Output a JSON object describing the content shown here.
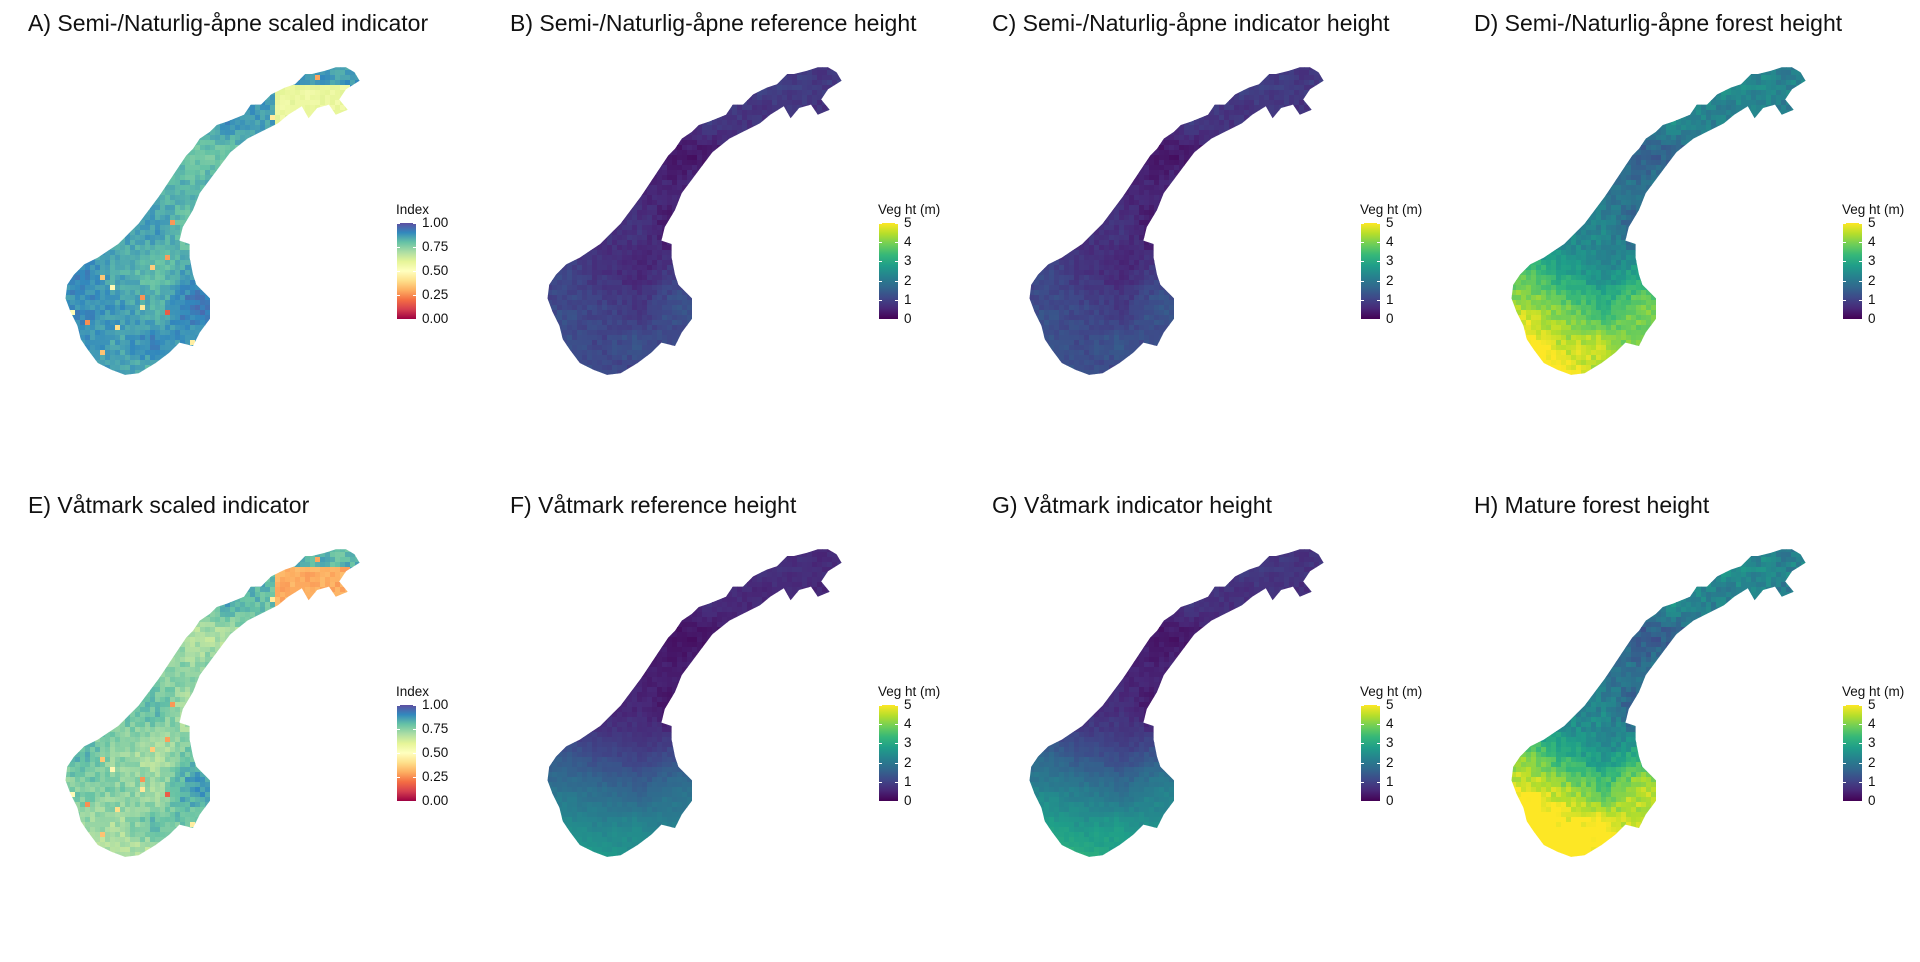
{
  "panels": [
    {
      "id": "A",
      "title": "A) Semi-/Naturlig-åpne scaled indicator",
      "legend": "index",
      "palette": "spectral",
      "fill": 0.85,
      "spread": 0.07,
      "south": 0.0,
      "west": 0.0,
      "north": -0.05,
      "lowSpots": true,
      "finnmark": 0.58
    },
    {
      "id": "B",
      "title": "B) Semi-/Naturlig-åpne reference height",
      "legend": "veg",
      "palette": "viridis",
      "fill": 0.13,
      "spread": 0.07,
      "south": 0.09,
      "west": 0.02,
      "north": -0.02,
      "lowSpots": false,
      "finnmark": null
    },
    {
      "id": "C",
      "title": "C) Semi-/Naturlig-åpne indicator height",
      "legend": "veg",
      "palette": "viridis",
      "fill": 0.13,
      "spread": 0.07,
      "south": 0.11,
      "west": 0.02,
      "north": -0.02,
      "lowSpots": false,
      "finnmark": null
    },
    {
      "id": "D",
      "title": "D) Semi-/Naturlig-åpne forest height",
      "legend": "veg",
      "palette": "viridis",
      "fill": 0.42,
      "spread": 0.12,
      "south": 0.45,
      "west": 0.35,
      "north": -0.1,
      "lowSpots": false,
      "finnmark": null
    },
    {
      "id": "E",
      "title": "E) Våtmark scaled indicator",
      "legend": "index",
      "palette": "spectral",
      "fill": 0.78,
      "spread": 0.1,
      "south": -0.05,
      "west": -0.12,
      "north": -0.05,
      "lowSpots": true,
      "finnmark": 0.3
    },
    {
      "id": "F",
      "title": "F) Våtmark reference height",
      "legend": "veg",
      "palette": "viridis",
      "fill": 0.1,
      "spread": 0.05,
      "south": 0.42,
      "west": 0.08,
      "north": -0.02,
      "lowSpots": false,
      "finnmark": null
    },
    {
      "id": "G",
      "title": "G) Våtmark indicator height",
      "legend": "veg",
      "palette": "viridis",
      "fill": 0.12,
      "spread": 0.06,
      "south": 0.48,
      "west": 0.1,
      "north": -0.02,
      "lowSpots": false,
      "finnmark": null
    },
    {
      "id": "H",
      "title": "H) Mature forest height",
      "legend": "veg",
      "palette": "viridis",
      "fill": 0.42,
      "spread": 0.14,
      "south": 0.6,
      "west": 0.38,
      "north": -0.12,
      "lowSpots": false,
      "finnmark": null
    }
  ],
  "legends": {
    "index": {
      "title": "Index",
      "min": 0,
      "max": 1,
      "ticks": [
        "1.00",
        "0.75",
        "0.50",
        "0.25",
        "0.00"
      ]
    },
    "veg": {
      "title": "Veg ht (m)",
      "min": 0,
      "max": 5,
      "ticks": [
        "5",
        "4",
        "3",
        "2",
        "1",
        "0"
      ]
    }
  },
  "palettes": {
    "spectral": [
      "#9e0142",
      "#d53e4f",
      "#f46d43",
      "#fdae61",
      "#fee08b",
      "#ffffbf",
      "#e6f598",
      "#abdda4",
      "#66c2a5",
      "#3288bd",
      "#5e4fa2"
    ],
    "viridis": [
      "#440154",
      "#482878",
      "#3e4989",
      "#31688e",
      "#26828e",
      "#1f9e89",
      "#35b779",
      "#6ece58",
      "#b5de2b",
      "#fde725"
    ]
  }
}
